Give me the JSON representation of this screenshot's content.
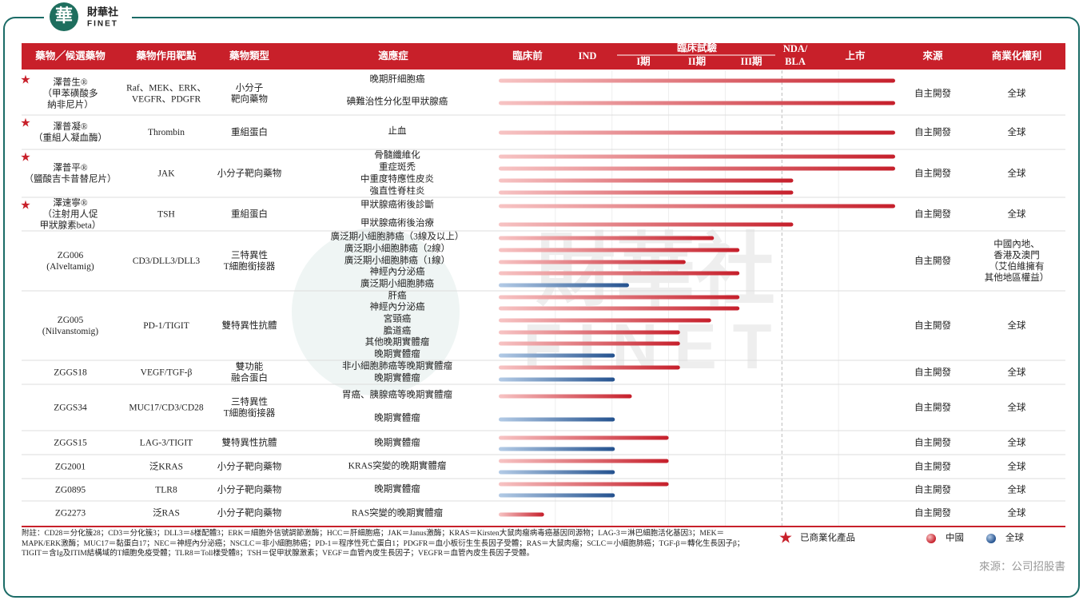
{
  "logo": {
    "mark": "華",
    "name": "財華社",
    "latin": "FINET"
  },
  "header": {
    "drug": "藥物╱候選藥物",
    "target": "藥物作用靶點",
    "type": "藥物類型",
    "indication": "適應症",
    "clinical": "臨床試驗",
    "stages": [
      [
        "臨床前"
      ],
      [
        "IND"
      ],
      [
        "I期"
      ],
      [
        "II期"
      ],
      [
        "III期"
      ],
      [
        "NDA/",
        "BLA"
      ],
      [
        "上市"
      ]
    ],
    "source": "來源",
    "rights": "商業化權利"
  },
  "drugs": [
    {
      "name": [
        "澤普生®",
        "（甲苯磺酸多",
        "納非尼片）"
      ],
      "commercialized": true,
      "target": [
        "Raf、MEK、ERK、",
        "VEGFR、PDGFR"
      ],
      "type": [
        "小分子",
        "靶向藥物"
      ],
      "indications": [
        {
          "label": "晚期肝細胞癌",
          "bars": [
            {
              "region": "中國",
              "progress": 7
            }
          ]
        },
        {
          "label": "碘難治性分化型甲狀腺癌",
          "bars": [
            {
              "region": "中國",
              "progress": 7
            }
          ]
        }
      ],
      "source": "自主開發",
      "rights": [
        "全球"
      ]
    },
    {
      "name": [
        "澤普凝®",
        "（重組人凝血酶）"
      ],
      "commercialized": true,
      "target": [
        "Thrombin"
      ],
      "type": [
        "重組蛋白"
      ],
      "indications": [
        {
          "label": "止血",
          "bars": [
            {
              "region": "中國",
              "progress": 7
            }
          ]
        }
      ],
      "source": "自主開發",
      "rights": [
        "全球"
      ]
    },
    {
      "name": [
        "澤普平®",
        "（鹽酸吉卡昔替尼片）"
      ],
      "commercialized": true,
      "target": [
        "JAK"
      ],
      "type": [
        "小分子靶向藥物"
      ],
      "indications": [
        {
          "label": "骨髓纖維化",
          "bars": [
            {
              "region": "中國",
              "progress": 7
            }
          ]
        },
        {
          "label": "重症斑禿",
          "bars": [
            {
              "region": "中國",
              "progress": 7
            }
          ]
        },
        {
          "label": "中重度特應性皮炎",
          "bars": [
            {
              "region": "中國",
              "progress": 5.2
            }
          ]
        },
        {
          "label": "強直性脊柱炎",
          "bars": [
            {
              "region": "中國",
              "progress": 5.2
            }
          ]
        }
      ],
      "source": "自主開發",
      "rights": [
        "全球"
      ]
    },
    {
      "name": [
        "澤速寧®",
        "（注射用人促",
        "甲狀腺素beta）"
      ],
      "commercialized": true,
      "target": [
        "TSH"
      ],
      "type": [
        "重組蛋白"
      ],
      "indications": [
        {
          "label": "甲狀腺癌術後診斷",
          "bars": [
            {
              "region": "中國",
              "progress": 7
            }
          ]
        },
        {
          "label": "甲狀腺癌術後治療",
          "bars": [
            {
              "region": "中國",
              "progress": 5.2
            }
          ]
        }
      ],
      "source": "自主開發",
      "rights": [
        "全球"
      ]
    },
    {
      "name": [
        "ZG006",
        "(Alveltamig)"
      ],
      "commercialized": false,
      "target": [
        "CD3/DLL3/DLL3"
      ],
      "type": [
        "三特異性",
        "T細胞銜接器"
      ],
      "indications": [
        {
          "label": "廣泛期小細胞肺癌（3線及以上）",
          "bars": [
            {
              "region": "中國",
              "progress": 3.8
            }
          ]
        },
        {
          "label": "廣泛期小細胞肺癌（2線）",
          "bars": [
            {
              "region": "中國",
              "progress": 4.25
            }
          ]
        },
        {
          "label": "廣泛期小細胞肺癌（1線）",
          "bars": [
            {
              "region": "中國",
              "progress": 3.3
            }
          ]
        },
        {
          "label": "神經內分泌癌",
          "bars": [
            {
              "region": "中國",
              "progress": 4.25
            }
          ]
        },
        {
          "label": "廣泛期小細胞肺癌",
          "bars": [
            {
              "region": "全球",
              "progress": 2.3
            }
          ]
        }
      ],
      "source": "自主開發",
      "rights": [
        "中國內地、",
        "香港及澳門",
        "（艾伯維擁有",
        "其他地區權益）"
      ]
    },
    {
      "name": [
        "ZG005",
        "(Nilvanstomig)"
      ],
      "commercialized": false,
      "target": [
        "PD-1/TIGIT"
      ],
      "type": [
        "雙特異性抗體"
      ],
      "indications": [
        {
          "label": "肝癌",
          "bars": [
            {
              "region": "中國",
              "progress": 4.25
            }
          ]
        },
        {
          "label": "神經內分泌癌",
          "bars": [
            {
              "region": "中國",
              "progress": 4.25
            }
          ]
        },
        {
          "label": "宮頸癌",
          "bars": [
            {
              "region": "中國",
              "progress": 3.75
            }
          ]
        },
        {
          "label": "膽道癌",
          "bars": [
            {
              "region": "中國",
              "progress": 3.2
            }
          ]
        },
        {
          "label": "其他晚期實體瘤",
          "bars": [
            {
              "region": "中國",
              "progress": 3.2
            }
          ]
        },
        {
          "label": "晚期實體瘤",
          "bars": [
            {
              "region": "全球",
              "progress": 2.05
            }
          ]
        }
      ],
      "source": "自主開發",
      "rights": [
        "全球"
      ]
    },
    {
      "name": [
        "ZGGS18"
      ],
      "commercialized": false,
      "target": [
        "VEGF/TGF-β"
      ],
      "type": [
        "雙功能",
        "融合蛋白"
      ],
      "indications": [
        {
          "label": "非小細胞肺癌等晚期實體瘤",
          "bars": [
            {
              "region": "中國",
              "progress": 3.2
            }
          ]
        },
        {
          "label": "晚期實體瘤",
          "bars": [
            {
              "region": "全球",
              "progress": 2.05
            }
          ]
        }
      ],
      "source": "自主開發",
      "rights": [
        "全球"
      ]
    },
    {
      "name": [
        "ZGGS34"
      ],
      "commercialized": false,
      "target": [
        "MUC17/CD3/CD28"
      ],
      "type": [
        "三特異性",
        "T細胞銜接器"
      ],
      "indications": [
        {
          "label": "胃癌、胰腺癌等晚期實體瘤",
          "bars": [
            {
              "region": "中國",
              "progress": 2.35
            }
          ]
        },
        {
          "label": "晚期實體瘤",
          "bars": [
            {
              "region": "全球",
              "progress": 2.05
            }
          ]
        }
      ],
      "source": "自主開發",
      "rights": [
        "全球"
      ]
    },
    {
      "name": [
        "ZGGS15"
      ],
      "commercialized": false,
      "target": [
        "LAG-3/TIGIT"
      ],
      "type": [
        "雙特異性抗體"
      ],
      "indications": [
        {
          "label": "晚期實體瘤",
          "bars": [
            {
              "region": "中國",
              "progress": 3.0
            },
            {
              "region": "全球",
              "progress": 2.05
            }
          ]
        }
      ],
      "source": "自主開發",
      "rights": [
        "全球"
      ]
    },
    {
      "name": [
        "ZG2001"
      ],
      "commercialized": false,
      "target": [
        "泛KRAS"
      ],
      "type": [
        "小分子靶向藥物"
      ],
      "indications": [
        {
          "label": "KRAS突變的晚期實體瘤",
          "bars": [
            {
              "region": "中國",
              "progress": 3.0
            },
            {
              "region": "全球",
              "progress": 2.05
            }
          ]
        }
      ],
      "source": "自主開發",
      "rights": [
        "全球"
      ]
    },
    {
      "name": [
        "ZG0895"
      ],
      "commercialized": false,
      "target": [
        "TLR8"
      ],
      "type": [
        "小分子靶向藥物"
      ],
      "indications": [
        {
          "label": "晚期實體瘤",
          "bars": [
            {
              "region": "中國",
              "progress": 3.0
            },
            {
              "region": "全球",
              "progress": 2.05
            }
          ]
        }
      ],
      "source": "自主開發",
      "rights": [
        "全球"
      ]
    },
    {
      "name": [
        "ZG2273"
      ],
      "commercialized": false,
      "target": [
        "泛RAS"
      ],
      "type": [
        "小分子靶向藥物"
      ],
      "indications": [
        {
          "label": "RAS突變的晚期實體瘤",
          "bars": [
            {
              "region": "中國",
              "progress": 0.8
            }
          ]
        }
      ],
      "source": "自主開發",
      "rights": [
        "全球"
      ]
    }
  ],
  "notes": "附註：CD28＝分化簇28；CD3＝分化簇3；DLL3＝δ樣配體3；ERK＝細胞外信號調節激酶；HCC＝肝細胞癌；JAK＝Janus激酶；KRAS＝Kirsten大鼠肉瘤病毒癌基因同源物；LAG-3＝淋巴細胞活化基因3；MEK＝MAPK/ERK激酶；MUC17＝黏蛋白17；NEC＝神經內分泌癌；NSCLC＝非小細胞肺癌；PD-1＝程序性死亡蛋白1；PDGFR＝血小板衍生生長因子受體；RAS＝大鼠肉瘤；SCLC＝小細胞肺癌；TGF-β＝轉化生長因子β；TIGIT＝含Ig及ITIM結構域的T細胞免疫受體；TLR8＝Toll樣受體8；TSH＝促甲狀腺激素；VEGF＝血管內皮生長因子；VEGFR＝血管內皮生長因子受體。",
  "legend": {
    "commercialized": "已商業化產品",
    "regions": [
      {
        "label": "中國",
        "colors": [
          "#f7c4c4",
          "#c61f2b"
        ]
      },
      {
        "label": "全球",
        "colors": [
          "#b3cbe6",
          "#24528f"
        ]
      }
    ]
  },
  "credit": "來源：公司招股書"
}
